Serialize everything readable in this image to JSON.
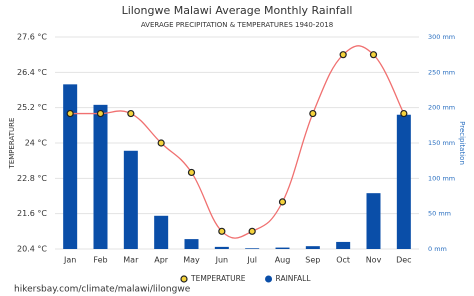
{
  "chart_data": {
    "type": "bar",
    "title": "Lilongwe Malawi Average Monthly Rainfall",
    "subtitle": "AVERAGE PRECIPITATION & TEMPERATURES 1940-2018",
    "y_label": "TEMPERATURE",
    "y2_label": "Precipitation",
    "categories": [
      "Jan",
      "Feb",
      "Mar",
      "Apr",
      "May",
      "Jun",
      "Jul",
      "Aug",
      "Sep",
      "Oct",
      "Nov",
      "Dec"
    ],
    "series": [
      {
        "name": "TEMPERATURE",
        "type": "line",
        "color": "#f07070",
        "marker_color": "#f5d33c",
        "values": [
          25.0,
          25.0,
          25.0,
          24.0,
          23.0,
          21.0,
          21.0,
          22.0,
          25.0,
          27.0,
          27.0,
          25.0
        ]
      },
      {
        "name": "RAINFALL",
        "type": "bar",
        "axis": "y2",
        "color": "#0a4ea8",
        "values": [
          233,
          204,
          139,
          47,
          14,
          3,
          1,
          2,
          4,
          10,
          79,
          190
        ]
      }
    ],
    "ylim": [
      20.4,
      27.6
    ],
    "yticks": [
      {
        "value": 20.4,
        "label": "20.4 °C"
      },
      {
        "value": 21.6,
        "label": "21.6 °C"
      },
      {
        "value": 22.8,
        "label": "22.8 °C"
      },
      {
        "value": 24,
        "label": "24 °C"
      },
      {
        "value": 25.2,
        "label": "25.2 °C"
      },
      {
        "value": 26.4,
        "label": "26.4 °C"
      },
      {
        "value": 27.6,
        "label": "27.6 °C"
      }
    ],
    "y2lim": [
      0,
      300
    ],
    "y2ticks": [
      {
        "value": 0,
        "label": "0 mm"
      },
      {
        "value": 50,
        "label": "50 mm"
      },
      {
        "value": 100,
        "label": "100 mm"
      },
      {
        "value": 150,
        "label": "150 mm"
      },
      {
        "value": 200,
        "label": "200 mm"
      },
      {
        "value": 250,
        "label": "250 mm"
      },
      {
        "value": 300,
        "label": "300 mm"
      }
    ],
    "grid": true,
    "legend": "bottom",
    "source": "hikersbay.com/climate/malawi/lilongwe"
  }
}
